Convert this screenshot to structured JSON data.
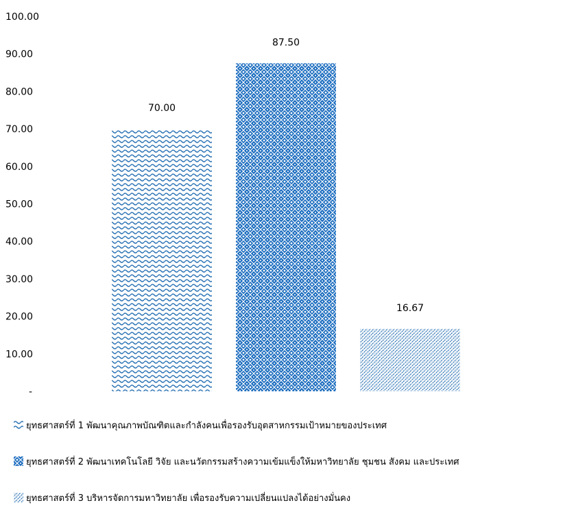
{
  "chart_data": {
    "type": "bar",
    "title": "",
    "xlabel": "",
    "ylabel": "",
    "ylim": [
      0,
      100
    ],
    "y_ticks": [
      "-",
      "10.00",
      "20.00",
      "30.00",
      "40.00",
      "50.00",
      "60.00",
      "70.00",
      "80.00",
      "90.00",
      "100.00"
    ],
    "grid": false,
    "legend_placement": "bottom",
    "series": [
      {
        "name": "ยุทธศาสตร์ที่ 1 พัฒนาคุณภาพบัณฑิตและกำลังคนเพื่อรองรับอุตสาหกรรมเป้าหมายของประเทศ",
        "value": 70.0,
        "label": "70.00",
        "pattern": "wave"
      },
      {
        "name": "ยุทธศาสตร์ที่ 2 พัฒนาเทคโนโลยี วิจัย และนวัตกรรมสร้างความเข้มแข็งให้มหาวิทยาลัย ชุมชน สังคม และประเทศ",
        "value": 87.5,
        "label": "87.50",
        "pattern": "lattice"
      },
      {
        "name": "ยุทธศาสตร์ที่ 3 บริหารจัดการมหาวิทยาลัย เพื่อรองรับความเปลี่ยนแปลงได้อย่างมั่นคง",
        "value": 16.67,
        "label": "16.67",
        "pattern": "diagonal"
      }
    ],
    "colors": {
      "bar": "#2E75B6",
      "bar_dark": "#1F5FA8"
    }
  }
}
